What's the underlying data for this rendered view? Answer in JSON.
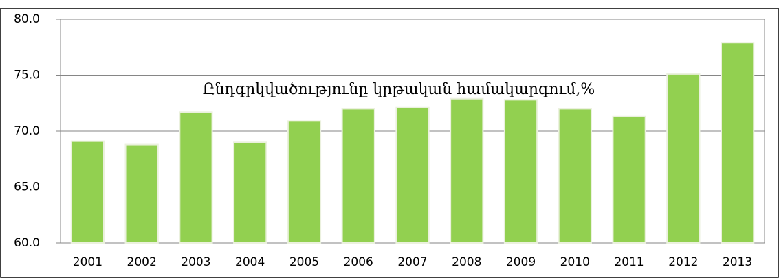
{
  "chart_data": {
    "type": "bar",
    "title": "Ընդգրկվածությունը կրթական համակարգում,%",
    "categories": [
      "2001",
      "2002",
      "2003",
      "2004",
      "2005",
      "2006",
      "2007",
      "2008",
      "2009",
      "2010",
      "2011",
      "2012",
      "2013"
    ],
    "values": [
      69.1,
      68.8,
      71.7,
      69.0,
      70.9,
      72.0,
      72.1,
      72.9,
      72.8,
      72.0,
      71.3,
      75.1,
      77.9
    ],
    "color": "#92d050",
    "ylim": [
      60,
      80
    ],
    "yticks": [
      {
        "value": 60,
        "label": "60.0"
      },
      {
        "value": 65,
        "label": "65.0"
      },
      {
        "value": 70,
        "label": "70.0"
      },
      {
        "value": 75,
        "label": "75.0"
      },
      {
        "value": 80,
        "label": "80.0"
      }
    ],
    "grid": true
  }
}
